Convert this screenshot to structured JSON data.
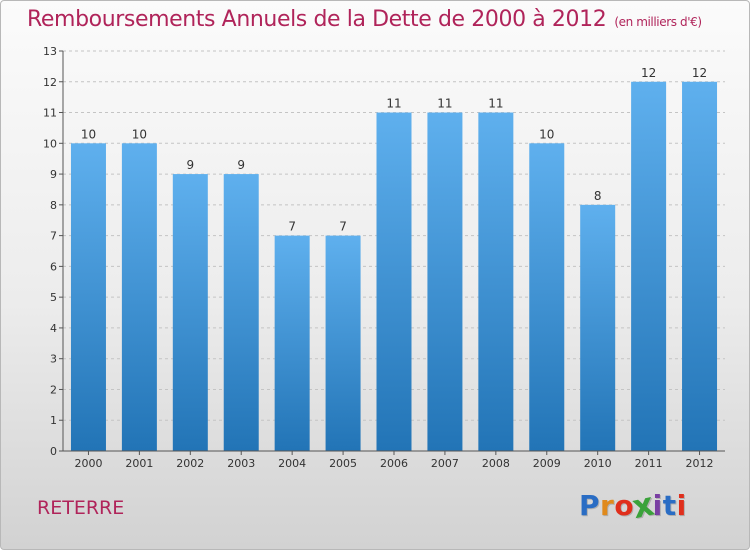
{
  "header": {
    "title": "Remboursements Annuels de la Dette de 2000 à 2012",
    "unit": "(en milliers d'€)"
  },
  "footer": {
    "place": "RETERRE",
    "logo": {
      "text": "Proxiti",
      "letters": [
        "P",
        "r",
        "o",
        "x",
        "i",
        "t",
        "i"
      ],
      "letter_colors": [
        "#2a6dc4",
        "#e08a1c",
        "#e02f1c",
        "#3aa23a",
        "#7a3fa3",
        "#2a6dc4",
        "#e02f1c"
      ]
    }
  },
  "colors": {
    "title": "#b0245a",
    "bar_top": "#5fb0ee",
    "bar_bottom": "#2274b6"
  },
  "chart_data": {
    "type": "bar",
    "categories": [
      "2000",
      "2001",
      "2002",
      "2003",
      "2004",
      "2005",
      "2006",
      "2007",
      "2008",
      "2009",
      "2010",
      "2011",
      "2012"
    ],
    "values": [
      10,
      10,
      9,
      9,
      7,
      7,
      11,
      11,
      11,
      10,
      8,
      12,
      12
    ],
    "data_labels": [
      "10",
      "10",
      "9",
      "9",
      "7",
      "7",
      "11",
      "11",
      "11",
      "10",
      "8",
      "12",
      "12"
    ],
    "ylim": [
      0,
      13
    ],
    "y_ticks": [
      0,
      1,
      2,
      3,
      4,
      5,
      6,
      7,
      8,
      9,
      10,
      11,
      12,
      13
    ],
    "y_tick_labels": [
      "0",
      "1",
      "2",
      "3",
      "4",
      "5",
      "6",
      "7",
      "8",
      "9",
      "10",
      "11",
      "12",
      "13"
    ],
    "grid": "horizontal-dashed",
    "legend": "none"
  }
}
